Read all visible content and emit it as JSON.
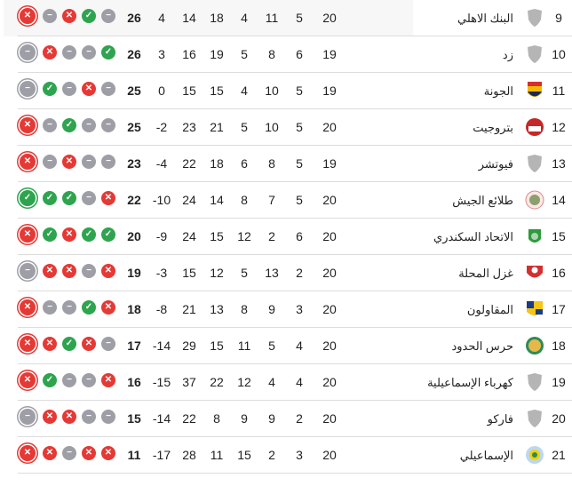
{
  "colors": {
    "win": "#2ea44f",
    "loss": "#e53935",
    "draw": "#9e9ea6"
  },
  "form_legend": {
    "W": "check-icon",
    "L": "x-icon",
    "D": "minus-icon"
  },
  "rows": [
    {
      "pos": "9",
      "name": "البنك الاهلي",
      "logo": "default-shield",
      "p": "20",
      "w": "5",
      "d": "11",
      "l": "4",
      "gf": "18",
      "ga": "14",
      "gd": "4",
      "pts": "26",
      "form": [
        "L",
        "D",
        "L",
        "W",
        "D"
      ],
      "highlight": true
    },
    {
      "pos": "10",
      "name": "زد",
      "logo": "default-shield",
      "p": "19",
      "w": "6",
      "d": "8",
      "l": "5",
      "gf": "19",
      "ga": "16",
      "gd": "3",
      "pts": "26",
      "form": [
        "D",
        "L",
        "D",
        "D",
        "W"
      ]
    },
    {
      "pos": "11",
      "name": "الجونة",
      "logo": "el-gouna",
      "p": "19",
      "w": "5",
      "d": "10",
      "l": "4",
      "gf": "15",
      "ga": "15",
      "gd": "0",
      "pts": "25",
      "form": [
        "D",
        "W",
        "D",
        "L",
        "D"
      ]
    },
    {
      "pos": "12",
      "name": "بتروجيت",
      "logo": "petrojet",
      "p": "20",
      "w": "5",
      "d": "10",
      "l": "5",
      "gf": "21",
      "ga": "23",
      "gd": "-2",
      "pts": "25",
      "form": [
        "L",
        "D",
        "W",
        "D",
        "D"
      ]
    },
    {
      "pos": "13",
      "name": "فيوتشر",
      "logo": "default-shield",
      "p": "19",
      "w": "5",
      "d": "8",
      "l": "6",
      "gf": "18",
      "ga": "22",
      "gd": "-4",
      "pts": "23",
      "form": [
        "L",
        "D",
        "L",
        "D",
        "D"
      ]
    },
    {
      "pos": "14",
      "name": "طلائع الجيش",
      "logo": "tala-ea-el-gaish",
      "p": "20",
      "w": "5",
      "d": "7",
      "l": "8",
      "gf": "14",
      "ga": "24",
      "gd": "-10",
      "pts": "22",
      "form": [
        "W",
        "W",
        "W",
        "D",
        "L"
      ]
    },
    {
      "pos": "15",
      "name": "الاتحاد السكندري",
      "logo": "al-ittihad",
      "p": "20",
      "w": "6",
      "d": "2",
      "l": "12",
      "gf": "15",
      "ga": "24",
      "gd": "-9",
      "pts": "20",
      "form": [
        "L",
        "W",
        "L",
        "W",
        "W"
      ]
    },
    {
      "pos": "16",
      "name": "غزل المحلة",
      "logo": "ghazl-el-mahalla",
      "p": "20",
      "w": "2",
      "d": "13",
      "l": "5",
      "gf": "12",
      "ga": "15",
      "gd": "-3",
      "pts": "19",
      "form": [
        "D",
        "L",
        "L",
        "D",
        "L"
      ]
    },
    {
      "pos": "17",
      "name": "المقاولون",
      "logo": "al-mokawloon",
      "p": "20",
      "w": "3",
      "d": "9",
      "l": "8",
      "gf": "13",
      "ga": "21",
      "gd": "-8",
      "pts": "18",
      "form": [
        "L",
        "D",
        "D",
        "W",
        "L"
      ]
    },
    {
      "pos": "18",
      "name": "حرس الحدود",
      "logo": "haras-el-hodoud",
      "p": "20",
      "w": "4",
      "d": "5",
      "l": "11",
      "gf": "15",
      "ga": "29",
      "gd": "-14",
      "pts": "17",
      "form": [
        "L",
        "L",
        "W",
        "L",
        "D"
      ]
    },
    {
      "pos": "19",
      "name": "كهرباء الإسماعيلية",
      "logo": "default-shield",
      "p": "20",
      "w": "4",
      "d": "4",
      "l": "12",
      "gf": "22",
      "ga": "37",
      "gd": "-15",
      "pts": "16",
      "form": [
        "L",
        "W",
        "D",
        "D",
        "L"
      ]
    },
    {
      "pos": "20",
      "name": "فاركو",
      "logo": "default-shield",
      "p": "20",
      "w": "2",
      "d": "9",
      "l": "9",
      "gf": "8",
      "ga": "22",
      "gd": "-14",
      "pts": "15",
      "form": [
        "D",
        "L",
        "L",
        "D",
        "D"
      ]
    },
    {
      "pos": "21",
      "name": "الإسماعيلي",
      "logo": "ismaily",
      "p": "20",
      "w": "3",
      "d": "2",
      "l": "15",
      "gf": "11",
      "ga": "28",
      "gd": "-17",
      "pts": "11",
      "form": [
        "L",
        "L",
        "D",
        "L",
        "L"
      ]
    }
  ]
}
